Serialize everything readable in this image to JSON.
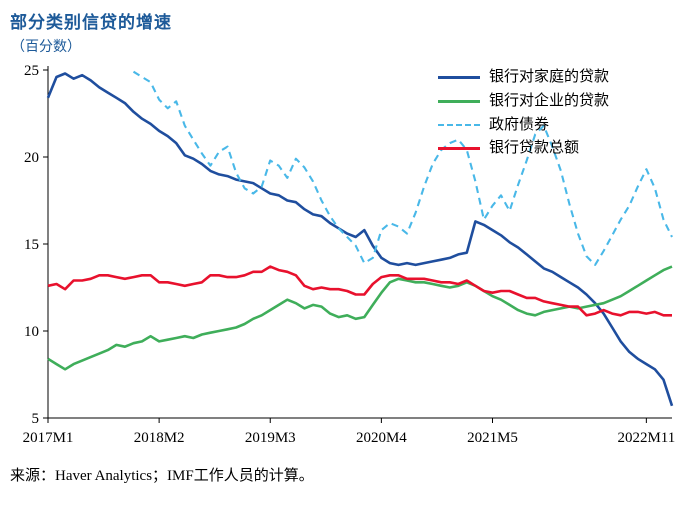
{
  "title": "部分类别信贷的增速",
  "subtitle": "（百分数）",
  "source": "来源：Haver Analytics；IMF工作人员的计算。",
  "chart_data": {
    "type": "line",
    "title": "部分类别信贷的增速",
    "ylabel": "百分数",
    "ylim": [
      5,
      25
    ],
    "y_ticks": [
      5,
      10,
      15,
      20,
      25
    ],
    "x_tick_labels": [
      "2017M1",
      "2018M2",
      "2019M3",
      "2020M4",
      "2021M5",
      "2022M11"
    ],
    "x_tick_positions": [
      0,
      13,
      26,
      39,
      52,
      70
    ],
    "n_points": 74,
    "x_start": "2017M1",
    "x_end": "2023M2",
    "grid": false,
    "legend_position": "top-right",
    "axis_color": "#000000",
    "series": [
      {
        "name": "银行对家庭的贷款",
        "color": "#1f4e9e",
        "dash": "solid",
        "values": [
          23.4,
          24.6,
          24.8,
          24.5,
          24.7,
          24.4,
          24.0,
          23.7,
          23.4,
          23.1,
          22.6,
          22.2,
          21.9,
          21.5,
          21.2,
          20.8,
          20.1,
          19.9,
          19.6,
          19.2,
          19.0,
          18.9,
          18.7,
          18.6,
          18.5,
          18.2,
          17.9,
          17.8,
          17.5,
          17.4,
          17.0,
          16.7,
          16.6,
          16.2,
          15.9,
          15.6,
          15.4,
          15.8,
          14.9,
          14.2,
          13.9,
          13.8,
          13.9,
          13.8,
          13.9,
          14.0,
          14.1,
          14.2,
          14.4,
          14.5,
          16.3,
          16.1,
          15.8,
          15.5,
          15.1,
          14.8,
          14.4,
          14.0,
          13.6,
          13.4,
          13.1,
          12.8,
          12.5,
          12.1,
          11.6,
          11.0,
          10.2,
          9.4,
          8.8,
          8.4,
          8.1,
          7.8,
          7.2,
          5.7
        ]
      },
      {
        "name": "银行对企业的贷款",
        "color": "#3fae5a",
        "dash": "solid",
        "values": [
          8.4,
          8.1,
          7.8,
          8.1,
          8.3,
          8.5,
          8.7,
          8.9,
          9.2,
          9.1,
          9.3,
          9.4,
          9.7,
          9.4,
          9.5,
          9.6,
          9.7,
          9.6,
          9.8,
          9.9,
          10.0,
          10.1,
          10.2,
          10.4,
          10.7,
          10.9,
          11.2,
          11.5,
          11.8,
          11.6,
          11.3,
          11.5,
          11.4,
          11.0,
          10.8,
          10.9,
          10.7,
          10.8,
          11.5,
          12.2,
          12.8,
          13.0,
          12.9,
          12.8,
          12.8,
          12.7,
          12.6,
          12.5,
          12.6,
          12.8,
          12.6,
          12.3,
          12.0,
          11.8,
          11.5,
          11.2,
          11.0,
          10.9,
          11.1,
          11.2,
          11.3,
          11.4,
          11.3,
          11.4,
          11.5,
          11.6,
          11.8,
          12.0,
          12.3,
          12.6,
          12.9,
          13.2,
          13.5,
          13.7
        ]
      },
      {
        "name": "政府债券",
        "color": "#49b8e8",
        "dash": "dashed",
        "values": [
          null,
          null,
          null,
          null,
          null,
          null,
          null,
          null,
          null,
          null,
          24.9,
          24.6,
          24.3,
          23.3,
          22.8,
          23.2,
          21.8,
          21.0,
          20.2,
          19.5,
          20.3,
          20.6,
          19.1,
          18.2,
          17.9,
          18.3,
          19.8,
          19.5,
          18.8,
          19.9,
          19.4,
          18.6,
          17.5,
          16.6,
          15.9,
          15.4,
          14.9,
          13.9,
          14.2,
          15.8,
          16.2,
          16.0,
          15.6,
          16.8,
          18.3,
          19.6,
          20.4,
          20.8,
          21.0,
          20.4,
          18.6,
          16.4,
          17.2,
          17.8,
          16.9,
          18.4,
          19.8,
          21.3,
          21.8,
          20.6,
          19.2,
          17.3,
          15.6,
          14.3,
          13.8,
          14.6,
          15.5,
          16.4,
          17.2,
          18.3,
          19.3,
          18.2,
          16.4,
          15.4
        ]
      },
      {
        "name": "银行贷款总额",
        "color": "#e8112d",
        "dash": "solid",
        "values": [
          12.6,
          12.7,
          12.4,
          12.9,
          12.9,
          13.0,
          13.2,
          13.2,
          13.1,
          13.0,
          13.1,
          13.2,
          13.2,
          12.8,
          12.8,
          12.7,
          12.6,
          12.7,
          12.8,
          13.2,
          13.2,
          13.1,
          13.1,
          13.2,
          13.4,
          13.4,
          13.7,
          13.5,
          13.4,
          13.2,
          12.6,
          12.4,
          12.5,
          12.4,
          12.4,
          12.3,
          12.1,
          12.1,
          12.7,
          13.1,
          13.2,
          13.2,
          13.0,
          13.0,
          13.0,
          12.9,
          12.8,
          12.8,
          12.7,
          12.9,
          12.6,
          12.3,
          12.2,
          12.3,
          12.3,
          12.1,
          11.9,
          11.9,
          11.7,
          11.6,
          11.5,
          11.4,
          11.4,
          10.9,
          11.0,
          11.2,
          11.0,
          10.9,
          11.1,
          11.1,
          11.0,
          11.1,
          10.9,
          10.9
        ]
      }
    ]
  }
}
